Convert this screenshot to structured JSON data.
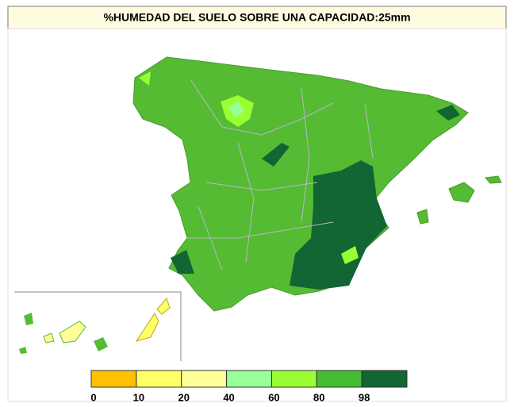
{
  "title": "%HUMEDAD DEL SUELO SOBRE UNA CAPACIDAD:25mm",
  "legend": {
    "colors": [
      "#ffc000",
      "#ffff66",
      "#ffff99",
      "#99ff99",
      "#99ff33",
      "#44bb33",
      "#116633"
    ],
    "ticks": [
      0,
      10,
      20,
      40,
      60,
      80,
      98
    ]
  }
}
